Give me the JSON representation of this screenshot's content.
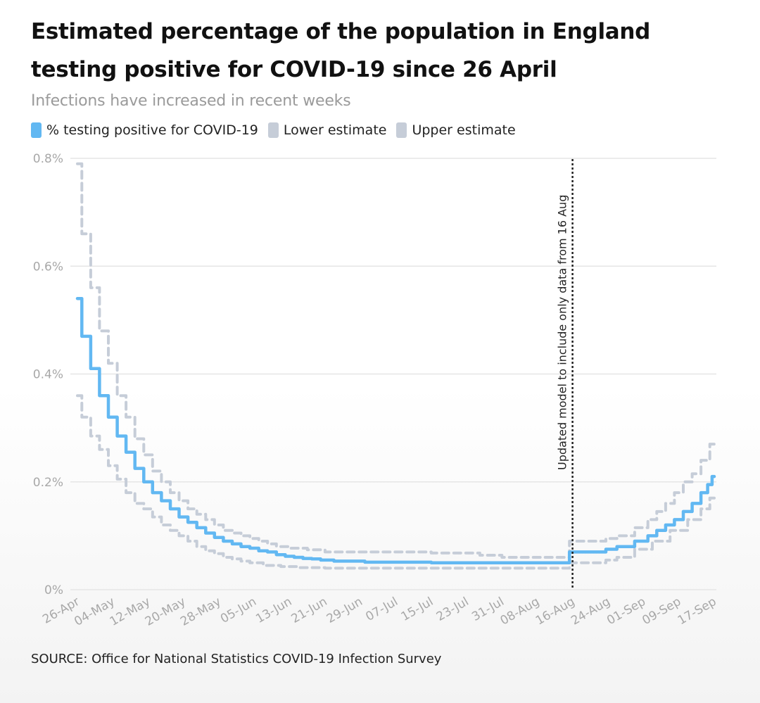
{
  "title": "Estimated percentage of the population in England testing positive for COVID-19 since 26 April",
  "subtitle": "Infections have increased in recent weeks",
  "source": "SOURCE: Office for National Statistics COVID-19 Infection Survey",
  "colors": {
    "main": "#62b8f2",
    "estimate": "#c6cdd8",
    "grid": "#e6e6e6",
    "axis_text": "#a8a8a8"
  },
  "chart_data": {
    "type": "line",
    "title": "Estimated percentage of the population in England testing positive for COVID-19 since 26 April",
    "xlabel": "",
    "ylabel": "",
    "ylim": [
      0,
      0.8
    ],
    "yticks": [
      0,
      0.2,
      0.4,
      0.6,
      0.8
    ],
    "ytick_labels": [
      "0%",
      "0.2%",
      "0.4%",
      "0.6%",
      "0.8%"
    ],
    "x_day_range": [
      0,
      144
    ],
    "xticks": [
      {
        "day": 0,
        "label": "26-Apr"
      },
      {
        "day": 8,
        "label": "04-May"
      },
      {
        "day": 16,
        "label": "12-May"
      },
      {
        "day": 24,
        "label": "20-May"
      },
      {
        "day": 32,
        "label": "28-May"
      },
      {
        "day": 40,
        "label": "05-Jun"
      },
      {
        "day": 48,
        "label": "13-Jun"
      },
      {
        "day": 56,
        "label": "21-Jun"
      },
      {
        "day": 64,
        "label": "29-Jun"
      },
      {
        "day": 72,
        "label": "07-Jul"
      },
      {
        "day": 80,
        "label": "15-Jul"
      },
      {
        "day": 88,
        "label": "23-Jul"
      },
      {
        "day": 96,
        "label": "31-Jul"
      },
      {
        "day": 104,
        "label": "08-Aug"
      },
      {
        "day": 112,
        "label": "16-Aug"
      },
      {
        "day": 120,
        "label": "24-Aug"
      },
      {
        "day": 128,
        "label": "01-Sep"
      },
      {
        "day": 136,
        "label": "09-Sep"
      },
      {
        "day": 144,
        "label": "17-Sep"
      }
    ],
    "annotation": {
      "day": 111,
      "label": "Updated model to include only data from 16 Aug"
    },
    "series": [
      {
        "name": "% testing positive for COVID-19",
        "style": "solid",
        "points": [
          [
            0,
            0.54
          ],
          [
            2,
            0.47
          ],
          [
            4,
            0.41
          ],
          [
            6,
            0.36
          ],
          [
            8,
            0.32
          ],
          [
            10,
            0.285
          ],
          [
            12,
            0.255
          ],
          [
            14,
            0.225
          ],
          [
            16,
            0.2
          ],
          [
            18,
            0.18
          ],
          [
            20,
            0.165
          ],
          [
            22,
            0.15
          ],
          [
            24,
            0.135
          ],
          [
            26,
            0.125
          ],
          [
            28,
            0.115
          ],
          [
            30,
            0.105
          ],
          [
            32,
            0.097
          ],
          [
            34,
            0.09
          ],
          [
            36,
            0.085
          ],
          [
            38,
            0.08
          ],
          [
            40,
            0.077
          ],
          [
            42,
            0.072
          ],
          [
            44,
            0.07
          ],
          [
            46,
            0.065
          ],
          [
            48,
            0.062
          ],
          [
            50,
            0.06
          ],
          [
            52,
            0.058
          ],
          [
            54,
            0.057
          ],
          [
            56,
            0.055
          ],
          [
            60,
            0.053
          ],
          [
            70,
            0.051
          ],
          [
            90,
            0.05
          ],
          [
            111,
            0.05
          ],
          [
            111.5,
            0.07
          ],
          [
            119,
            0.07
          ],
          [
            120,
            0.075
          ],
          [
            124,
            0.08
          ],
          [
            128,
            0.09
          ],
          [
            130,
            0.1
          ],
          [
            132,
            0.11
          ],
          [
            134,
            0.12
          ],
          [
            136,
            0.13
          ],
          [
            138,
            0.145
          ],
          [
            140,
            0.16
          ],
          [
            142,
            0.18
          ],
          [
            143,
            0.195
          ],
          [
            144,
            0.21
          ]
        ]
      },
      {
        "name": "Lower estimate",
        "style": "dashed",
        "points": [
          [
            0,
            0.36
          ],
          [
            2,
            0.32
          ],
          [
            4,
            0.285
          ],
          [
            6,
            0.26
          ],
          [
            8,
            0.23
          ],
          [
            10,
            0.205
          ],
          [
            12,
            0.18
          ],
          [
            14,
            0.16
          ],
          [
            16,
            0.15
          ],
          [
            18,
            0.135
          ],
          [
            20,
            0.12
          ],
          [
            22,
            0.11
          ],
          [
            24,
            0.1
          ],
          [
            26,
            0.09
          ],
          [
            28,
            0.08
          ],
          [
            30,
            0.072
          ],
          [
            32,
            0.067
          ],
          [
            34,
            0.06
          ],
          [
            36,
            0.057
          ],
          [
            38,
            0.053
          ],
          [
            40,
            0.05
          ],
          [
            44,
            0.045
          ],
          [
            48,
            0.043
          ],
          [
            52,
            0.041
          ],
          [
            60,
            0.04
          ],
          [
            111,
            0.04
          ],
          [
            111.5,
            0.05
          ],
          [
            119,
            0.05
          ],
          [
            120,
            0.055
          ],
          [
            124,
            0.06
          ],
          [
            128,
            0.075
          ],
          [
            132,
            0.09
          ],
          [
            136,
            0.11
          ],
          [
            140,
            0.13
          ],
          [
            142,
            0.15
          ],
          [
            144,
            0.17
          ]
        ]
      },
      {
        "name": "Upper estimate",
        "style": "dashed",
        "points": [
          [
            0,
            0.79
          ],
          [
            2,
            0.66
          ],
          [
            4,
            0.56
          ],
          [
            6,
            0.48
          ],
          [
            8,
            0.42
          ],
          [
            10,
            0.36
          ],
          [
            12,
            0.32
          ],
          [
            14,
            0.28
          ],
          [
            16,
            0.25
          ],
          [
            18,
            0.22
          ],
          [
            20,
            0.2
          ],
          [
            22,
            0.18
          ],
          [
            24,
            0.165
          ],
          [
            26,
            0.15
          ],
          [
            28,
            0.14
          ],
          [
            30,
            0.13
          ],
          [
            32,
            0.12
          ],
          [
            34,
            0.11
          ],
          [
            36,
            0.105
          ],
          [
            38,
            0.1
          ],
          [
            40,
            0.095
          ],
          [
            42,
            0.09
          ],
          [
            44,
            0.085
          ],
          [
            46,
            0.08
          ],
          [
            50,
            0.077
          ],
          [
            54,
            0.074
          ],
          [
            58,
            0.07
          ],
          [
            70,
            0.07
          ],
          [
            90,
            0.068
          ],
          [
            92,
            0.064
          ],
          [
            100,
            0.06
          ],
          [
            111,
            0.06
          ],
          [
            111.5,
            0.09
          ],
          [
            119,
            0.09
          ],
          [
            120,
            0.095
          ],
          [
            124,
            0.1
          ],
          [
            128,
            0.115
          ],
          [
            130,
            0.13
          ],
          [
            132,
            0.145
          ],
          [
            134,
            0.16
          ],
          [
            136,
            0.18
          ],
          [
            138,
            0.2
          ],
          [
            140,
            0.215
          ],
          [
            142,
            0.24
          ],
          [
            144,
            0.27
          ]
        ]
      }
    ]
  }
}
